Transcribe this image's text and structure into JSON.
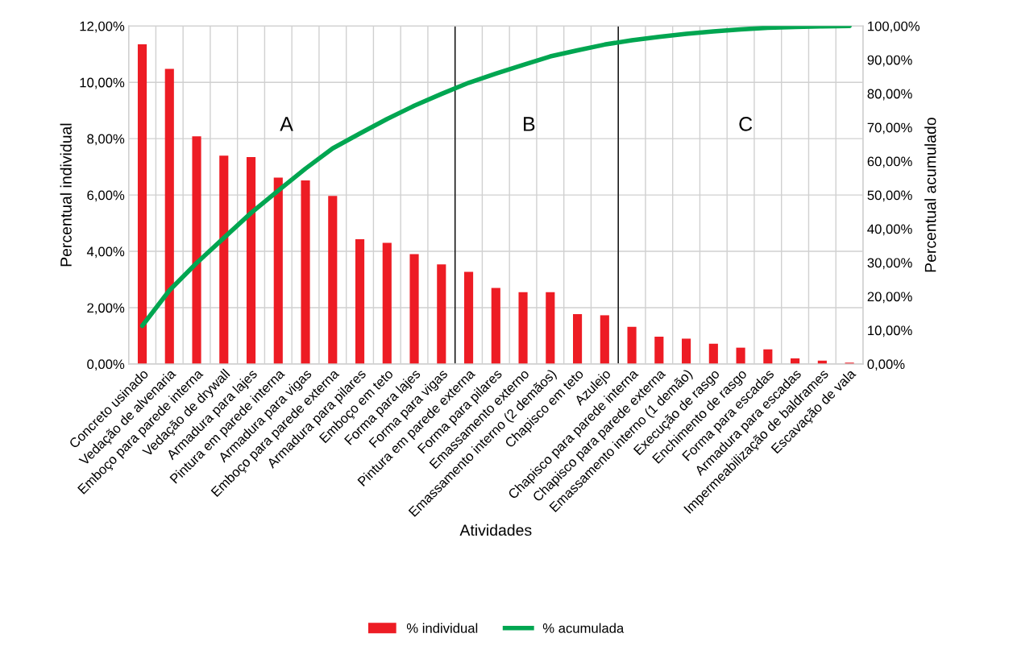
{
  "chart_data": {
    "type": "bar",
    "xlabel": "Atividades",
    "ylabel": "Percentual individual",
    "y2label": "Percentual acumulado",
    "categories": [
      "Concreto usinado",
      "Vedação de alvenaria",
      "Emboço para parede interna",
      "Vedação de drywall",
      "Armadura para lajes",
      "Pintura em parede interna",
      "Armadura para vigas",
      "Emboço para parede externa",
      "Armadura para pilares",
      "Emboço em teto",
      "Forma para lajes",
      "Forma para vigas",
      "Pintura em parede externa",
      "Forma para pilares",
      "Emassamento externo",
      "Emassamento interno (2 demãos)",
      "Chapisco em teto",
      "Azulejo",
      "Chapisco para parede interna",
      "Chapisco para parede externa",
      "Emassamento interno (1 demão)",
      "Execução de rasgo",
      "Enchimento de rasgo",
      "Forma para escadas",
      "Armadura para escadas",
      "Impermeabilização de baldrames",
      "Escavação de vala"
    ],
    "series": [
      {
        "name": "% individual",
        "color": "#ed1c24",
        "values": [
          11.35,
          10.48,
          8.08,
          7.4,
          7.35,
          6.62,
          6.52,
          5.97,
          4.43,
          4.3,
          3.9,
          3.54,
          3.27,
          2.7,
          2.55,
          2.55,
          1.77,
          1.73,
          1.32,
          0.97,
          0.9,
          0.72,
          0.58,
          0.52,
          0.2,
          0.12,
          0.05
        ]
      },
      {
        "name": "% acumulada",
        "type": "line",
        "axis": "y2",
        "color": "#00a651",
        "values": [
          11.3,
          21.8,
          29.9,
          37.3,
          44.7,
          51.3,
          57.8,
          63.8,
          68.2,
          72.5,
          76.4,
          79.9,
          83.2,
          85.9,
          88.5,
          91.0,
          92.8,
          94.5,
          95.8,
          96.8,
          97.7,
          98.4,
          99.0,
          99.5,
          99.7,
          99.9,
          100.0
        ]
      }
    ],
    "ylim": [
      0,
      12
    ],
    "yticks": [
      {
        "value": 0,
        "label": "0,00%"
      },
      {
        "value": 2,
        "label": "2,00%"
      },
      {
        "value": 4,
        "label": "4,00%"
      },
      {
        "value": 6,
        "label": "6,00%"
      },
      {
        "value": 8,
        "label": "8,00%"
      },
      {
        "value": 10,
        "label": "10,00%"
      },
      {
        "value": 12,
        "label": "12,00%"
      }
    ],
    "y2lim": [
      0,
      100
    ],
    "y2ticks": [
      {
        "value": 0,
        "label": "0,00%"
      },
      {
        "value": 10,
        "label": "10,00%"
      },
      {
        "value": 20,
        "label": "20,00%"
      },
      {
        "value": 30,
        "label": "30,00%"
      },
      {
        "value": 40,
        "label": "40,00%"
      },
      {
        "value": 50,
        "label": "50,00%"
      },
      {
        "value": 60,
        "label": "60,00%"
      },
      {
        "value": 70,
        "label": "70,00%"
      },
      {
        "value": 80,
        "label": "80,00%"
      },
      {
        "value": 90,
        "label": "90,00%"
      },
      {
        "value": 100,
        "label": "100,00%"
      }
    ],
    "annotations": [
      "A",
      "B",
      "C"
    ],
    "grid": true,
    "legend": "bottom",
    "marker": "none",
    "line_style": "solid"
  }
}
